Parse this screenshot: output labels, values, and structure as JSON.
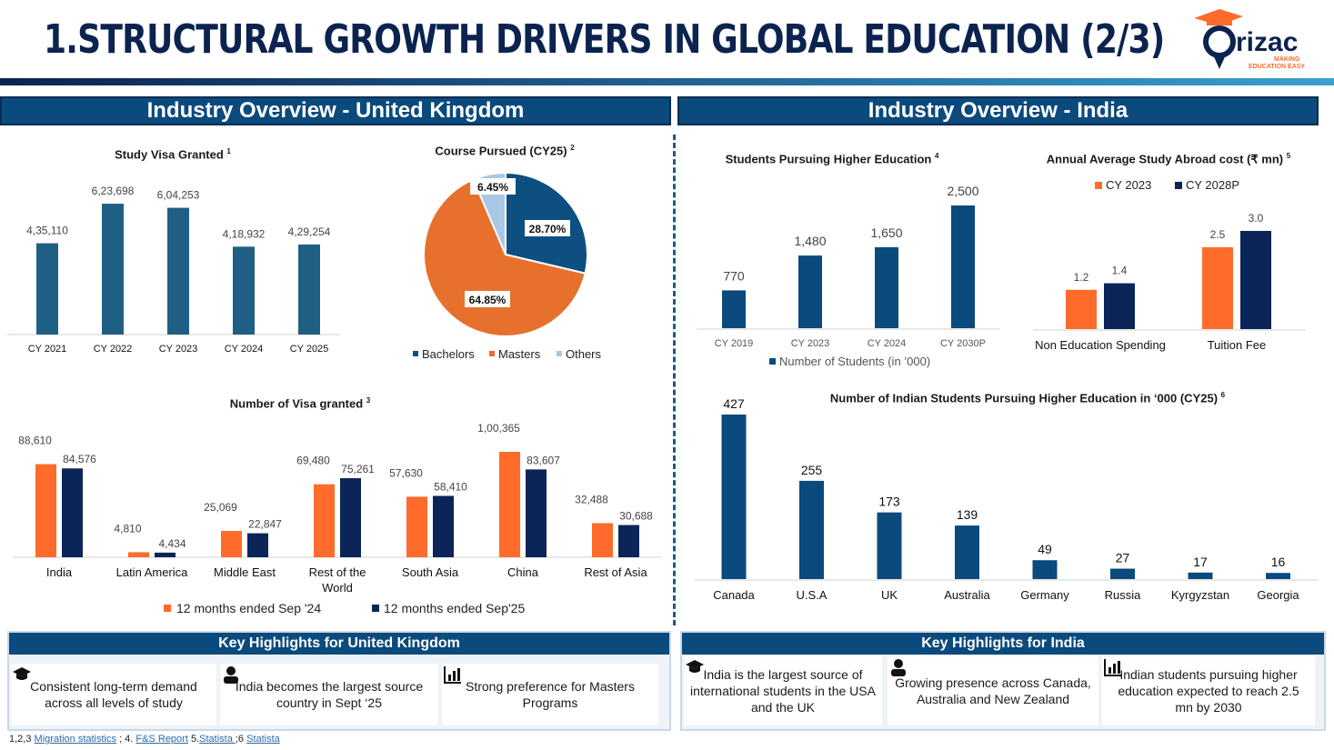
{
  "title": "1.Structural Growth Drivers in Global Education (2/3)",
  "logo": {
    "name": "rizac",
    "tagline1": "MAKING",
    "tagline2": "EDUCATION EASY"
  },
  "colors": {
    "navy": "#0c2350",
    "blue": "#1f5f84",
    "orange": "#ff6b2b",
    "dark": "#0b2559",
    "teal": "#0b4a7d"
  },
  "uk_section": {
    "header": "Industry Overview - United Kingdom"
  },
  "india_section": {
    "header": "Industry Overview - India"
  },
  "visa_granted": {
    "title": "Study Visa Granted",
    "sup": "1",
    "chart_data": {
      "type": "bar",
      "categories": [
        "CY 2021",
        "CY 2022",
        "CY 2023",
        "CY 2024",
        "CY 2025"
      ],
      "values": [
        435110,
        623698,
        604253,
        418932,
        429254
      ],
      "labels": [
        "4,35,110",
        "6,23,698",
        "6,04,253",
        "4,18,932",
        "4,29,254"
      ]
    }
  },
  "course_pursued": {
    "title": "Course Pursued (CY25)",
    "sup": "2",
    "chart_data": {
      "type": "pie",
      "slices": [
        {
          "name": "Bachelors",
          "value": 28.7,
          "label": "28.70%",
          "color": "#0e4f82"
        },
        {
          "name": "Masters",
          "value": 64.85,
          "label": "64.85%",
          "color": "#e8702d"
        },
        {
          "name": "Others",
          "value": 6.45,
          "label": "6.45%",
          "color": "#a9c8e6"
        }
      ]
    }
  },
  "visa_region": {
    "title": "Number of Visa granted",
    "sup": "3",
    "chart_data": {
      "type": "bar",
      "categories": [
        "India",
        "Latin America",
        "Middle East",
        "Rest of the World",
        "South Asia",
        "China",
        "Rest of Asia"
      ],
      "series": [
        {
          "name": "12 months ended Sep '24",
          "values": [
            88610,
            4810,
            25069,
            69480,
            57630,
            100365,
            32488
          ],
          "labels": [
            "88,610",
            "4,810",
            "25,069",
            "69,480",
            "57,630",
            "1,00,365",
            "32,488"
          ]
        },
        {
          "name": "12 months ended Sep'25",
          "values": [
            84576,
            4434,
            22847,
            75261,
            58410,
            83607,
            30688
          ],
          "labels": [
            "84,576",
            "4,434",
            "22,847",
            "75,261",
            "58,410",
            "83,607",
            "30,688"
          ]
        }
      ]
    }
  },
  "students_higher": {
    "title": "Students Pursuing Higher Education",
    "sup": "4",
    "chart_data": {
      "type": "bar",
      "categories": [
        "CY 2019",
        "CY 2023",
        "CY 2024",
        "CY 2030P"
      ],
      "values": [
        770,
        1480,
        1650,
        2500
      ],
      "labels": [
        "770",
        "1,480",
        "1,650",
        "2,500"
      ],
      "legend": "Number of Students (in ’000)"
    }
  },
  "abroad_cost": {
    "title": "Annual Average Study Abroad cost (₹ mn)",
    "sup": "5",
    "chart_data": {
      "type": "bar",
      "categories": [
        "Non Education Spending",
        "Tuition Fee"
      ],
      "series": [
        {
          "name": "CY 2023",
          "values": [
            1.2,
            2.5
          ]
        },
        {
          "name": "CY 2028P",
          "values": [
            1.4,
            3.0
          ]
        }
      ],
      "labels": [
        [
          "1.2",
          "2.5"
        ],
        [
          "1.4",
          "3.0"
        ]
      ]
    }
  },
  "indian_students": {
    "title": "Number of Indian Students Pursuing Higher Education in ‘000 (CY25)",
    "sup": "6",
    "chart_data": {
      "type": "bar",
      "categories": [
        "Canada",
        "U.S.A",
        "UK",
        "Australia",
        "Germany",
        "Russia",
        "Kyrgyzstan",
        "Georgia"
      ],
      "values": [
        427,
        255,
        173,
        139,
        49,
        27,
        17,
        16
      ]
    }
  },
  "highlights_uk": {
    "header": "Key Highlights for United Kingdom",
    "cards": [
      {
        "icon": "graduation-cap-icon",
        "text": "Consistent long-term demand across all levels of study"
      },
      {
        "icon": "person-icon",
        "text": "India becomes the largest source country in Sept ‘25"
      },
      {
        "icon": "bar-chart-icon",
        "text": "Strong preference for Masters Programs"
      }
    ]
  },
  "highlights_india": {
    "header": "Key Highlights for India",
    "cards": [
      {
        "icon": "graduation-cap-icon",
        "text": "India is the largest source of international students in the USA and the UK"
      },
      {
        "icon": "person-icon",
        "text": "Growing presence across Canada, Australia and New Zealand"
      },
      {
        "icon": "bar-chart-icon",
        "text": "Indian students pursuing higher education expected to reach 2.5 mn by 2030"
      }
    ]
  },
  "footer": {
    "prefix1": "1,2,3 ",
    "link1": "Migration statistics",
    "mid1": " ; 4. ",
    "link2": "F&S Report",
    "mid2": " 5.",
    "link3": "Statista ",
    "mid3": " ;6 ",
    "link4": "Statista"
  }
}
